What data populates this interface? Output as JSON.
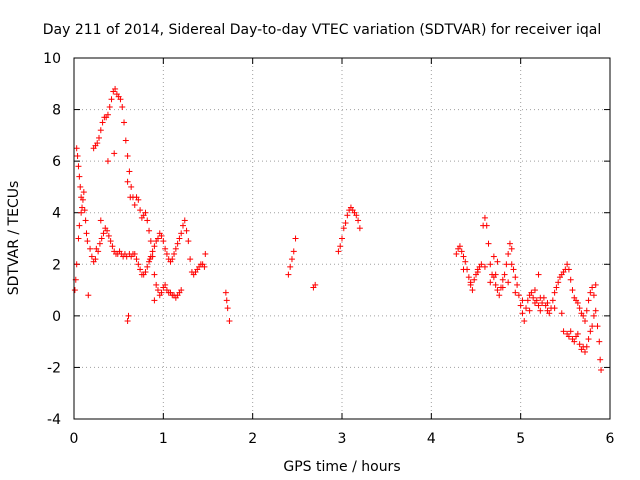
{
  "chart_data": {
    "type": "scatter",
    "title": "Day 211 of 2014, Sidereal Day-to-day VTEC variation (SDTVAR) for receiver iqal",
    "xlabel": "GPS time / hours",
    "ylabel": "SDTVAR / TECUs",
    "xlim": [
      0,
      6
    ],
    "ylim": [
      -4,
      10
    ],
    "xticks": [
      "0",
      "1",
      "2",
      "3",
      "4",
      "5",
      "6"
    ],
    "yticks": [
      "-4",
      "-2",
      "0",
      "2",
      "4",
      "6",
      "8",
      "10"
    ],
    "grid": true,
    "marker": "+",
    "color": "#ff0000",
    "series": [
      {
        "name": "SDTVAR",
        "points": [
          [
            0.01,
            1.0
          ],
          [
            0.02,
            1.4
          ],
          [
            0.03,
            2.0
          ],
          [
            0.03,
            6.5
          ],
          [
            0.04,
            6.2
          ],
          [
            0.05,
            5.8
          ],
          [
            0.05,
            3.0
          ],
          [
            0.06,
            5.4
          ],
          [
            0.06,
            3.5
          ],
          [
            0.07,
            5.0
          ],
          [
            0.08,
            4.6
          ],
          [
            0.08,
            4.0
          ],
          [
            0.09,
            4.2
          ],
          [
            0.1,
            4.5
          ],
          [
            0.11,
            4.8
          ],
          [
            0.12,
            4.1
          ],
          [
            0.13,
            3.7
          ],
          [
            0.14,
            3.2
          ],
          [
            0.15,
            2.9
          ],
          [
            0.16,
            0.8
          ],
          [
            0.18,
            2.6
          ],
          [
            0.2,
            2.3
          ],
          [
            0.22,
            2.1
          ],
          [
            0.24,
            2.2
          ],
          [
            0.25,
            2.6
          ],
          [
            0.27,
            2.5
          ],
          [
            0.29,
            2.8
          ],
          [
            0.3,
            3.7
          ],
          [
            0.31,
            3.0
          ],
          [
            0.33,
            3.2
          ],
          [
            0.35,
            3.4
          ],
          [
            0.37,
            3.3
          ],
          [
            0.39,
            3.1
          ],
          [
            0.41,
            2.9
          ],
          [
            0.43,
            2.7
          ],
          [
            0.45,
            2.5
          ],
          [
            0.47,
            2.4
          ],
          [
            0.49,
            2.4
          ],
          [
            0.51,
            2.5
          ],
          [
            0.53,
            2.4
          ],
          [
            0.55,
            2.3
          ],
          [
            0.57,
            2.4
          ],
          [
            0.59,
            2.3
          ],
          [
            0.6,
            -0.2
          ],
          [
            0.61,
            0.0
          ],
          [
            0.62,
            2.4
          ],
          [
            0.64,
            2.3
          ],
          [
            0.66,
            2.4
          ],
          [
            0.68,
            2.4
          ],
          [
            0.7,
            2.2
          ],
          [
            0.72,
            2.0
          ],
          [
            0.74,
            1.8
          ],
          [
            0.76,
            1.6
          ],
          [
            0.78,
            1.6
          ],
          [
            0.8,
            1.7
          ],
          [
            0.82,
            1.9
          ],
          [
            0.84,
            2.1
          ],
          [
            0.86,
            2.3
          ],
          [
            0.88,
            2.5
          ],
          [
            0.9,
            2.7
          ],
          [
            0.92,
            2.9
          ],
          [
            0.94,
            3.0
          ],
          [
            0.96,
            3.2
          ],
          [
            0.98,
            3.1
          ],
          [
            1.0,
            2.9
          ],
          [
            1.02,
            2.6
          ],
          [
            1.04,
            2.4
          ],
          [
            1.06,
            2.2
          ],
          [
            1.08,
            2.1
          ],
          [
            1.1,
            2.2
          ],
          [
            1.12,
            2.4
          ],
          [
            1.14,
            2.6
          ],
          [
            1.16,
            2.8
          ],
          [
            1.18,
            3.0
          ],
          [
            1.2,
            3.2
          ],
          [
            1.22,
            3.5
          ],
          [
            1.24,
            3.7
          ],
          [
            1.26,
            3.3
          ],
          [
            1.28,
            2.9
          ],
          [
            1.3,
            2.2
          ],
          [
            1.32,
            1.7
          ],
          [
            1.34,
            1.6
          ],
          [
            1.36,
            1.7
          ],
          [
            1.38,
            1.8
          ],
          [
            1.4,
            1.9
          ],
          [
            1.42,
            2.0
          ],
          [
            1.44,
            2.0
          ],
          [
            1.46,
            1.9
          ],
          [
            1.47,
            2.4
          ],
          [
            0.22,
            6.5
          ],
          [
            0.24,
            6.6
          ],
          [
            0.26,
            6.7
          ],
          [
            0.28,
            6.9
          ],
          [
            0.3,
            7.2
          ],
          [
            0.32,
            7.5
          ],
          [
            0.34,
            7.7
          ],
          [
            0.36,
            7.7
          ],
          [
            0.38,
            7.8
          ],
          [
            0.4,
            8.1
          ],
          [
            0.42,
            8.4
          ],
          [
            0.44,
            8.7
          ],
          [
            0.46,
            8.8
          ],
          [
            0.48,
            8.6
          ],
          [
            0.5,
            8.5
          ],
          [
            0.52,
            8.4
          ],
          [
            0.54,
            8.1
          ],
          [
            0.56,
            7.5
          ],
          [
            0.58,
            6.8
          ],
          [
            0.6,
            6.2
          ],
          [
            0.62,
            5.6
          ],
          [
            0.64,
            5.0
          ],
          [
            0.66,
            4.6
          ],
          [
            0.68,
            4.3
          ],
          [
            0.7,
            4.6
          ],
          [
            0.72,
            4.5
          ],
          [
            0.74,
            4.1
          ],
          [
            0.76,
            3.8
          ],
          [
            0.78,
            3.9
          ],
          [
            0.8,
            4.0
          ],
          [
            0.82,
            3.7
          ],
          [
            0.84,
            3.3
          ],
          [
            0.86,
            2.9
          ],
          [
            0.88,
            2.3
          ],
          [
            0.9,
            1.6
          ],
          [
            0.92,
            1.2
          ],
          [
            0.94,
            1.0
          ],
          [
            0.96,
            0.8
          ],
          [
            0.98,
            0.9
          ],
          [
            1.0,
            1.1
          ],
          [
            1.02,
            1.2
          ],
          [
            1.04,
            1.0
          ],
          [
            1.06,
            0.9
          ],
          [
            1.08,
            0.9
          ],
          [
            1.1,
            0.8
          ],
          [
            1.12,
            0.8
          ],
          [
            1.14,
            0.7
          ],
          [
            1.16,
            0.8
          ],
          [
            1.18,
            0.9
          ],
          [
            1.2,
            1.0
          ],
          [
            0.38,
            6.0
          ],
          [
            0.45,
            6.3
          ],
          [
            0.6,
            5.2
          ],
          [
            0.63,
            4.6
          ],
          [
            0.85,
            2.2
          ],
          [
            0.9,
            0.6
          ],
          [
            1.7,
            0.9
          ],
          [
            1.71,
            0.6
          ],
          [
            1.72,
            0.3
          ],
          [
            1.74,
            -0.2
          ],
          [
            2.4,
            1.6
          ],
          [
            2.42,
            1.9
          ],
          [
            2.44,
            2.2
          ],
          [
            2.46,
            2.5
          ],
          [
            2.48,
            3.0
          ],
          [
            2.68,
            1.1
          ],
          [
            2.7,
            1.2
          ],
          [
            2.96,
            2.5
          ],
          [
            2.98,
            2.7
          ],
          [
            3.0,
            3.0
          ],
          [
            3.02,
            3.4
          ],
          [
            3.04,
            3.6
          ],
          [
            3.06,
            3.9
          ],
          [
            3.08,
            4.1
          ],
          [
            3.1,
            4.2
          ],
          [
            3.12,
            4.1
          ],
          [
            3.14,
            4.0
          ],
          [
            3.16,
            3.9
          ],
          [
            3.18,
            3.7
          ],
          [
            3.2,
            3.4
          ],
          [
            4.28,
            2.4
          ],
          [
            4.3,
            2.6
          ],
          [
            4.32,
            2.7
          ],
          [
            4.34,
            2.5
          ],
          [
            4.36,
            2.3
          ],
          [
            4.38,
            2.1
          ],
          [
            4.4,
            1.8
          ],
          [
            4.42,
            1.5
          ],
          [
            4.44,
            1.3
          ],
          [
            4.46,
            1.0
          ],
          [
            4.48,
            1.4
          ],
          [
            4.5,
            1.6
          ],
          [
            4.52,
            1.8
          ],
          [
            4.54,
            1.9
          ],
          [
            4.56,
            2.0
          ],
          [
            4.58,
            3.5
          ],
          [
            4.6,
            3.8
          ],
          [
            4.62,
            3.5
          ],
          [
            4.64,
            2.8
          ],
          [
            4.66,
            2.0
          ],
          [
            4.68,
            1.6
          ],
          [
            4.7,
            1.5
          ],
          [
            4.72,
            1.2
          ],
          [
            4.74,
            1.0
          ],
          [
            4.76,
            0.8
          ],
          [
            4.78,
            1.1
          ],
          [
            4.8,
            1.4
          ],
          [
            4.82,
            1.6
          ],
          [
            4.84,
            2.0
          ],
          [
            4.86,
            2.4
          ],
          [
            4.88,
            2.8
          ],
          [
            4.9,
            2.0
          ],
          [
            4.92,
            1.8
          ],
          [
            4.94,
            1.5
          ],
          [
            4.96,
            1.2
          ],
          [
            4.98,
            0.8
          ],
          [
            5.0,
            0.4
          ],
          [
            5.02,
            0.1
          ],
          [
            5.04,
            -0.2
          ],
          [
            5.06,
            0.3
          ],
          [
            5.08,
            0.6
          ],
          [
            5.1,
            0.8
          ],
          [
            5.12,
            0.9
          ],
          [
            5.14,
            0.7
          ],
          [
            5.16,
            0.5
          ],
          [
            5.18,
            0.6
          ],
          [
            5.2,
            0.4
          ],
          [
            5.22,
            0.2
          ],
          [
            5.24,
            0.5
          ],
          [
            5.26,
            0.7
          ],
          [
            5.28,
            0.4
          ],
          [
            5.3,
            0.2
          ],
          [
            5.32,
            0.1
          ],
          [
            5.34,
            0.3
          ],
          [
            5.36,
            0.6
          ],
          [
            5.38,
            0.9
          ],
          [
            5.4,
            1.1
          ],
          [
            5.42,
            1.3
          ],
          [
            5.44,
            1.5
          ],
          [
            5.46,
            1.6
          ],
          [
            5.48,
            1.7
          ],
          [
            5.5,
            1.8
          ],
          [
            5.52,
            2.0
          ],
          [
            5.54,
            1.8
          ],
          [
            5.56,
            1.4
          ],
          [
            5.58,
            1.0
          ],
          [
            5.6,
            0.7
          ],
          [
            5.62,
            0.6
          ],
          [
            5.64,
            0.5
          ],
          [
            5.66,
            0.3
          ],
          [
            5.68,
            0.1
          ],
          [
            5.7,
            0.0
          ],
          [
            5.72,
            -0.2
          ],
          [
            5.74,
            0.2
          ],
          [
            5.76,
            0.6
          ],
          [
            5.78,
            0.9
          ],
          [
            5.8,
            1.1
          ],
          [
            5.82,
            0.8
          ],
          [
            5.84,
            0.2
          ],
          [
            5.86,
            -0.4
          ],
          [
            5.88,
            -1.0
          ],
          [
            5.89,
            -1.7
          ],
          [
            5.9,
            -2.1
          ],
          [
            4.36,
            1.8
          ],
          [
            4.44,
            1.2
          ],
          [
            4.52,
            1.7
          ],
          [
            4.6,
            1.9
          ],
          [
            4.66,
            1.3
          ],
          [
            4.72,
            1.6
          ],
          [
            4.8,
            1.1
          ],
          [
            4.86,
            1.3
          ],
          [
            4.94,
            0.9
          ],
          [
            5.02,
            0.6
          ],
          [
            5.1,
            0.2
          ],
          [
            5.16,
            1.0
          ],
          [
            5.22,
            0.7
          ],
          [
            5.3,
            0.5
          ],
          [
            5.38,
            0.3
          ],
          [
            5.46,
            0.1
          ],
          [
            5.52,
            -0.7
          ],
          [
            5.54,
            -0.8
          ],
          [
            5.56,
            -0.6
          ],
          [
            5.58,
            -0.9
          ],
          [
            5.6,
            -1.0
          ],
          [
            5.62,
            -0.8
          ],
          [
            5.64,
            -0.7
          ],
          [
            5.66,
            -1.1
          ],
          [
            5.68,
            -1.3
          ],
          [
            5.7,
            -1.2
          ],
          [
            5.72,
            -1.4
          ],
          [
            5.74,
            -1.2
          ],
          [
            5.76,
            -0.9
          ],
          [
            5.78,
            -0.6
          ],
          [
            5.8,
            -0.4
          ],
          [
            5.82,
            0.0
          ],
          [
            4.7,
            2.3
          ],
          [
            4.74,
            2.1
          ],
          [
            4.9,
            2.6
          ],
          [
            5.2,
            1.6
          ],
          [
            5.48,
            -0.6
          ],
          [
            5.84,
            1.2
          ]
        ]
      }
    ]
  }
}
